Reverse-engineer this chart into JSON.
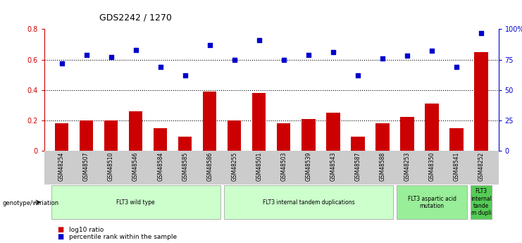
{
  "title": "GDS2242 / 1270",
  "samples": [
    "GSM48254",
    "GSM48507",
    "GSM48510",
    "GSM48546",
    "GSM48584",
    "GSM48585",
    "GSM48586",
    "GSM48255",
    "GSM48501",
    "GSM48503",
    "GSM48539",
    "GSM48543",
    "GSM48587",
    "GSM48588",
    "GSM48253",
    "GSM48350",
    "GSM48541",
    "GSM48252"
  ],
  "bar_values": [
    0.18,
    0.2,
    0.2,
    0.26,
    0.15,
    0.09,
    0.39,
    0.2,
    0.38,
    0.18,
    0.21,
    0.25,
    0.09,
    0.18,
    0.22,
    0.31,
    0.15,
    0.65
  ],
  "dot_values_pct": [
    72,
    79,
    77,
    83,
    69,
    62,
    87,
    75,
    91,
    75,
    79,
    81,
    62,
    76,
    78,
    82,
    69,
    97
  ],
  "bar_color": "#cc0000",
  "dot_color": "#0000cc",
  "ylim_left": [
    0,
    0.8
  ],
  "yticks_left": [
    0,
    0.2,
    0.4,
    0.6,
    0.8
  ],
  "ytick_labels_left": [
    "0",
    "0.2",
    "0.4",
    "0.6",
    "0.8"
  ],
  "ytick_labels_right": [
    "0",
    "25",
    "50",
    "75",
    "100%"
  ],
  "dotted_lines": [
    0.2,
    0.4,
    0.6
  ],
  "bg_color": "#ffffff",
  "tick_area_color": "#cccccc",
  "group_data": [
    {
      "start": 0,
      "end": 6,
      "color": "#ccffcc",
      "label": "FLT3 wild type"
    },
    {
      "start": 7,
      "end": 13,
      "color": "#ccffcc",
      "label": "FLT3 internal tandem duplications"
    },
    {
      "start": 14,
      "end": 16,
      "color": "#99ee99",
      "label": "FLT3 aspartic acid\nmutation"
    },
    {
      "start": 17,
      "end": 17,
      "color": "#55cc55",
      "label": "FLT3\ninternal\ntande\nm dupli"
    }
  ],
  "legend_bar_label": "log10 ratio",
  "legend_dot_label": "percentile rank within the sample",
  "genotype_label": "genotype/variation"
}
